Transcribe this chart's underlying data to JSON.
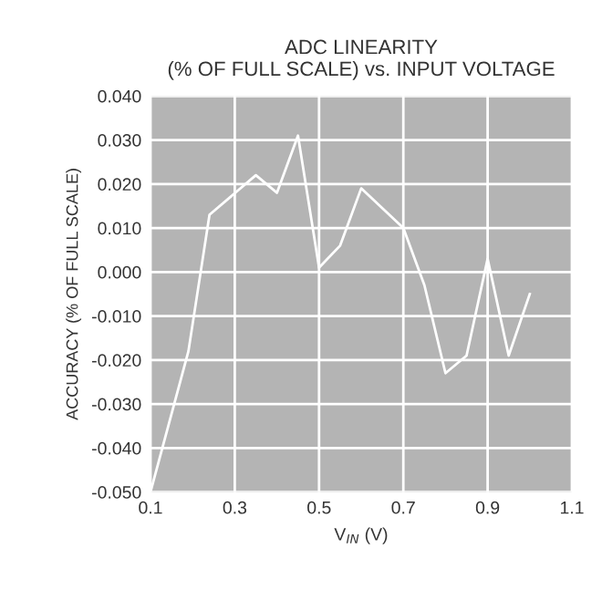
{
  "chart_data": {
    "type": "line",
    "title": "ADC LINEARITY\n(% OF FULL SCALE) vs. INPUT VOLTAGE",
    "xlabel": "V$_{IN}$ (V)",
    "ylabel": "ACCURACY (% OF FULL SCALE)",
    "x": [
      0.1,
      0.19,
      0.24,
      0.35,
      0.4,
      0.45,
      0.5,
      0.55,
      0.6,
      0.7,
      0.75,
      0.8,
      0.85,
      0.9,
      0.95,
      1.0
    ],
    "series": [
      {
        "color": "#ffffff",
        "values": [
          -0.05,
          -0.018,
          0.013,
          0.022,
          0.018,
          0.031,
          0.001,
          0.006,
          0.019,
          0.01,
          -0.003,
          -0.023,
          -0.019,
          0.003,
          -0.019,
          -0.005
        ]
      }
    ],
    "xlim": [
      0.1,
      1.1
    ],
    "xticks": [
      0.1,
      0.3,
      0.5,
      0.7,
      0.9,
      1.1
    ],
    "ylim": [
      -0.05,
      0.04
    ],
    "yticks": [
      {
        "value": -0.05,
        "label": "-0.050"
      },
      {
        "value": -0.04,
        "label": "-0.040"
      },
      {
        "value": -0.03,
        "label": "-0.030"
      },
      {
        "value": -0.02,
        "label": "-0.020"
      },
      {
        "value": -0.01,
        "label": "-0.010"
      },
      {
        "value": 0.0,
        "label": "0.000"
      },
      {
        "value": 0.01,
        "label": "0.010"
      },
      {
        "value": 0.02,
        "label": "0.020"
      },
      {
        "value": 0.03,
        "label": "0.030"
      },
      {
        "value": 0.04,
        "label": "0.040"
      }
    ],
    "grid": true,
    "marker": "none",
    "line_style": "solid"
  }
}
